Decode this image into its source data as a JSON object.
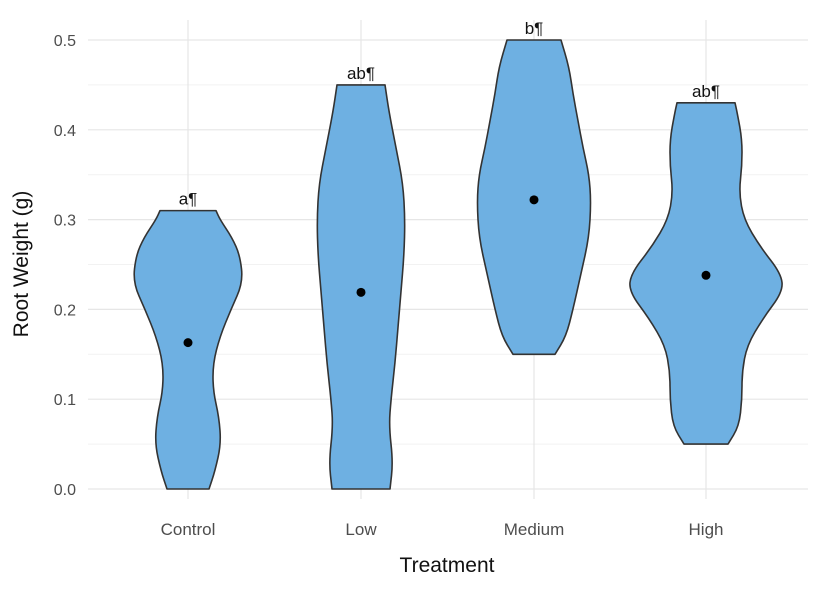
{
  "chart_data": {
    "type": "violin",
    "title": "",
    "xlabel": "Treatment",
    "ylabel": "Root Weight (g)",
    "ylim": [
      0,
      0.5
    ],
    "y_ticks": [
      "0.0",
      "0.1",
      "0.2",
      "0.3",
      "0.4",
      "0.5"
    ],
    "categories": [
      "Control",
      "Low",
      "Medium",
      "High"
    ],
    "means": [
      0.163,
      0.219,
      0.322,
      0.238
    ],
    "ranges": [
      [
        0.0,
        0.31
      ],
      [
        0.0,
        0.45
      ],
      [
        0.15,
        0.5
      ],
      [
        0.05,
        0.43
      ]
    ],
    "significance_labels": [
      "a¶",
      "ab¶",
      "b¶",
      "ab¶"
    ],
    "fill_color": "#6EB0E2",
    "outline_color": "#333333",
    "point_color": "#000000",
    "grid": true,
    "legend": "none"
  }
}
